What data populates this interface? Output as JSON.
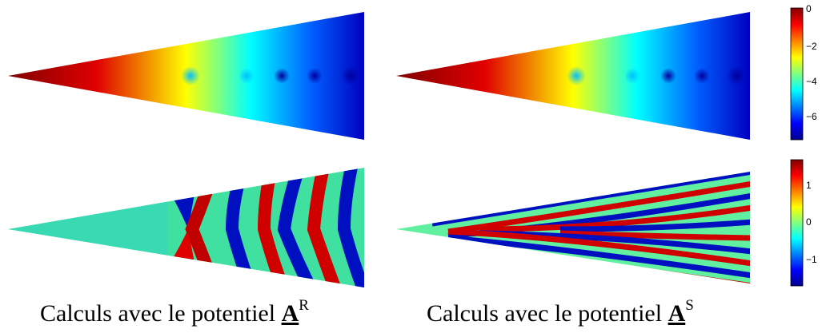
{
  "colorbars": [
    {
      "ticks": [
        "0",
        "−2",
        "−4",
        "−6"
      ]
    },
    {
      "ticks": [
        "1",
        "0",
        "−1"
      ]
    }
  ],
  "captions": [
    {
      "text": "Calculs avec le potentiel",
      "symbol": "A",
      "superscript": "R"
    },
    {
      "text": "Calculs avec le potentiel",
      "symbol": "A",
      "superscript": "S"
    }
  ]
}
